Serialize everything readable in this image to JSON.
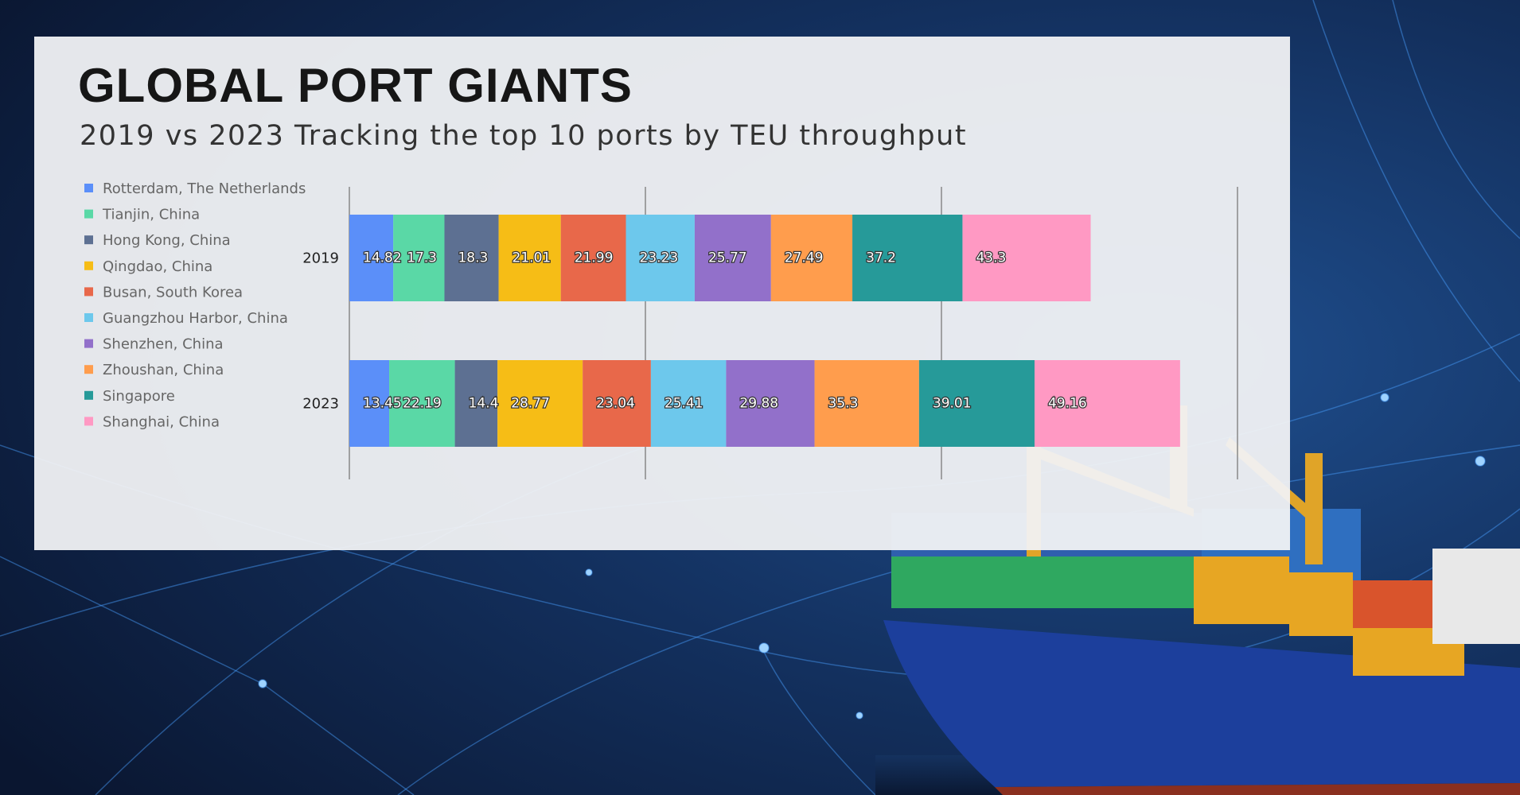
{
  "chart_data": {
    "type": "stacked-bar-horizontal",
    "title": "GLOBAL PORT GIANTS",
    "subtitle": "2019 vs 2023 Tracking the top 10 ports by TEU throughput",
    "categories": [
      "2019",
      "2023"
    ],
    "series": [
      {
        "name": "Rotterdam, The Netherlands",
        "color": "#5b8ff9",
        "values": [
          14.82,
          13.45
        ]
      },
      {
        "name": "Tianjin, China",
        "color": "#5ad8a6",
        "values": [
          17.3,
          22.19
        ]
      },
      {
        "name": "Hong Kong, China",
        "color": "#5d7092",
        "values": [
          18.3,
          14.4
        ]
      },
      {
        "name": "Qingdao, China",
        "color": "#f6bd16",
        "values": [
          21.01,
          28.77
        ]
      },
      {
        "name": "Busan, South Korea",
        "color": "#e8684a",
        "values": [
          21.99,
          23.04
        ]
      },
      {
        "name": "Guangzhou Harbor, China",
        "color": "#6dc8ec",
        "values": [
          23.23,
          25.41
        ]
      },
      {
        "name": "Shenzhen, China",
        "color": "#9270ca",
        "values": [
          25.77,
          29.88
        ]
      },
      {
        "name": "Zhoushan, China",
        "color": "#ff9d4d",
        "values": [
          27.49,
          35.3
        ]
      },
      {
        "name": "Singapore",
        "color": "#269a99",
        "values": [
          37.2,
          39.01
        ]
      },
      {
        "name": "Shanghai, China",
        "color": "#ff99c3",
        "values": [
          43.3,
          49.16
        ]
      }
    ],
    "xlim": [
      0,
      300
    ],
    "xticks": [
      0,
      100,
      200,
      300
    ],
    "grid": true,
    "legend": "left"
  }
}
